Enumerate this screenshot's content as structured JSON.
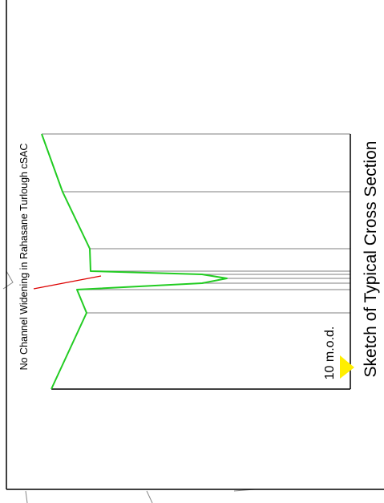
{
  "title": "Sketch of Typical Cross Section",
  "annotation": "No Channel Widening in Rahasane Turlough cSAC",
  "datum_label": "10 m.o.d.",
  "colors": {
    "ground_profile": "#22cc22",
    "vertical_lines": "#999999",
    "baseline": "#000000",
    "annotation_leader": "#dd0000",
    "datum_marker": "#ffee00",
    "background": "#ffffff"
  }
}
